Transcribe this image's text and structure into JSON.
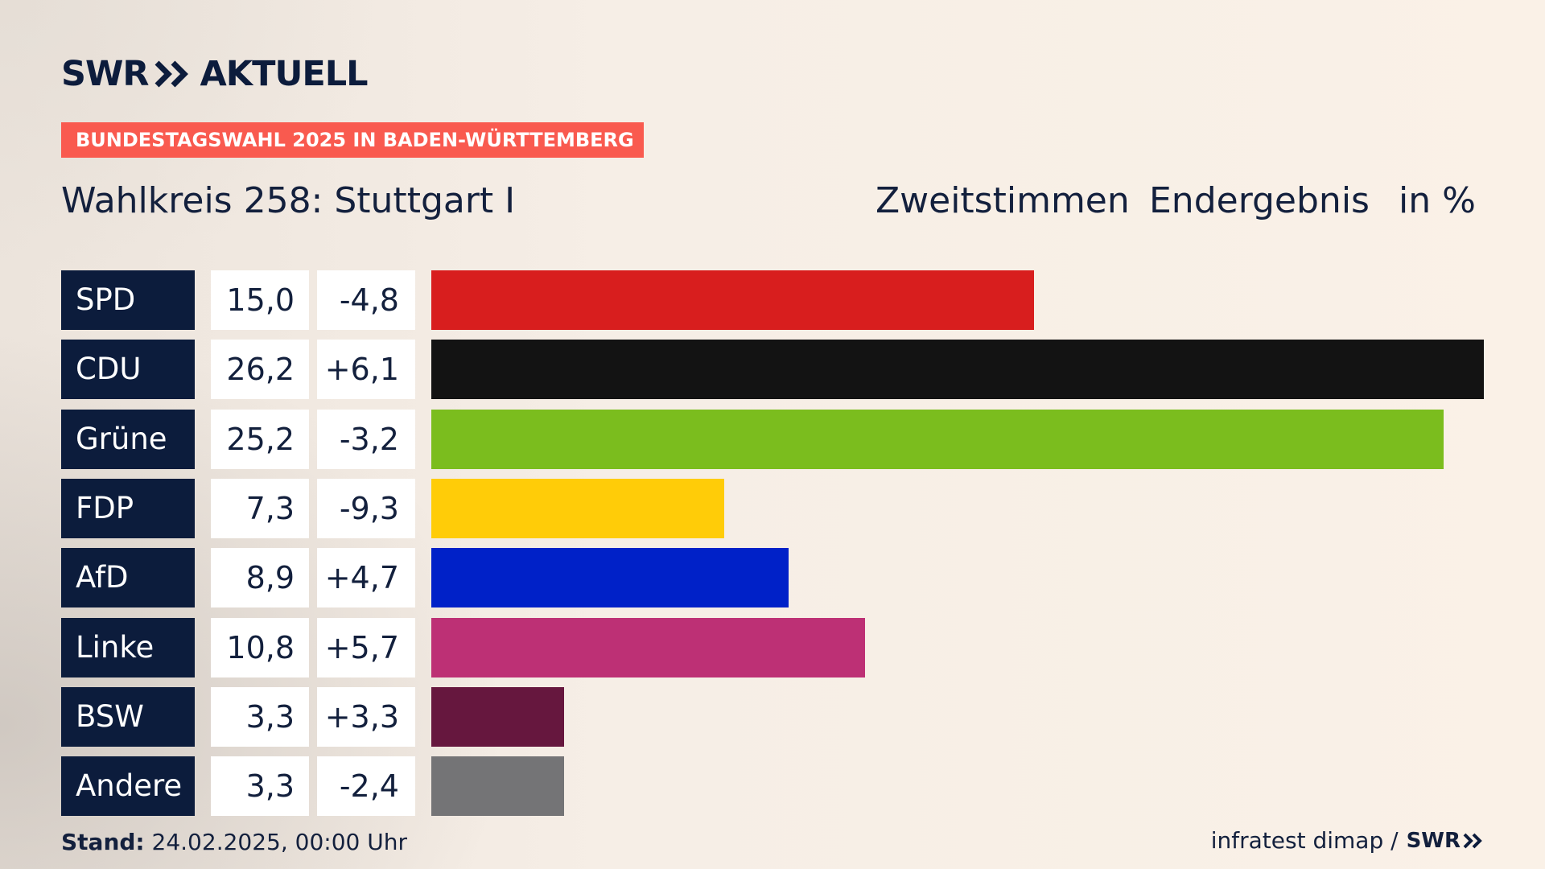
{
  "brand": {
    "logo_left": "SWR",
    "logo_right": "AKTUELL",
    "color_navy": "#0c1c3c",
    "color_accent": "#f95a4f"
  },
  "banner": "BUNDESTAGSWAHL 2025 IN BADEN-WÜRTTEMBERG",
  "title": "Wahlkreis 258: Stuttgart I",
  "headers": {
    "vote_type": "Zweitstimmen",
    "status": "Endergebnis",
    "unit": "in %"
  },
  "chart_data": {
    "type": "bar",
    "orientation": "horizontal",
    "categories": [
      "SPD",
      "CDU",
      "Grüne",
      "FDP",
      "AfD",
      "Linke",
      "BSW",
      "Andere"
    ],
    "values": [
      15.0,
      26.2,
      25.2,
      7.3,
      8.9,
      10.8,
      3.3,
      3.3
    ],
    "value_labels": [
      "15,0",
      "26,2",
      "25,2",
      "7,3",
      "8,9",
      "10,8",
      "3,3",
      "3,3"
    ],
    "changes": [
      -4.8,
      6.1,
      -3.2,
      -9.3,
      4.7,
      5.7,
      3.3,
      -2.4
    ],
    "change_labels": [
      "-4,8",
      "+6,1",
      "-3,2",
      "-9,3",
      "+4,7",
      "+5,7",
      "+3,3",
      "-2,4"
    ],
    "colors": [
      "#d81e1e",
      "#131313",
      "#7bbd1e",
      "#ffcc08",
      "#0021c8",
      "#bd3075",
      "#66173e",
      "#747476"
    ],
    "xlim": [
      0,
      26.2
    ]
  },
  "footer": {
    "stand_label": "Stand:",
    "stand_value": "24.02.2025, 00:00 Uhr",
    "source": "infratest dimap /",
    "source_logo": "SWR"
  }
}
